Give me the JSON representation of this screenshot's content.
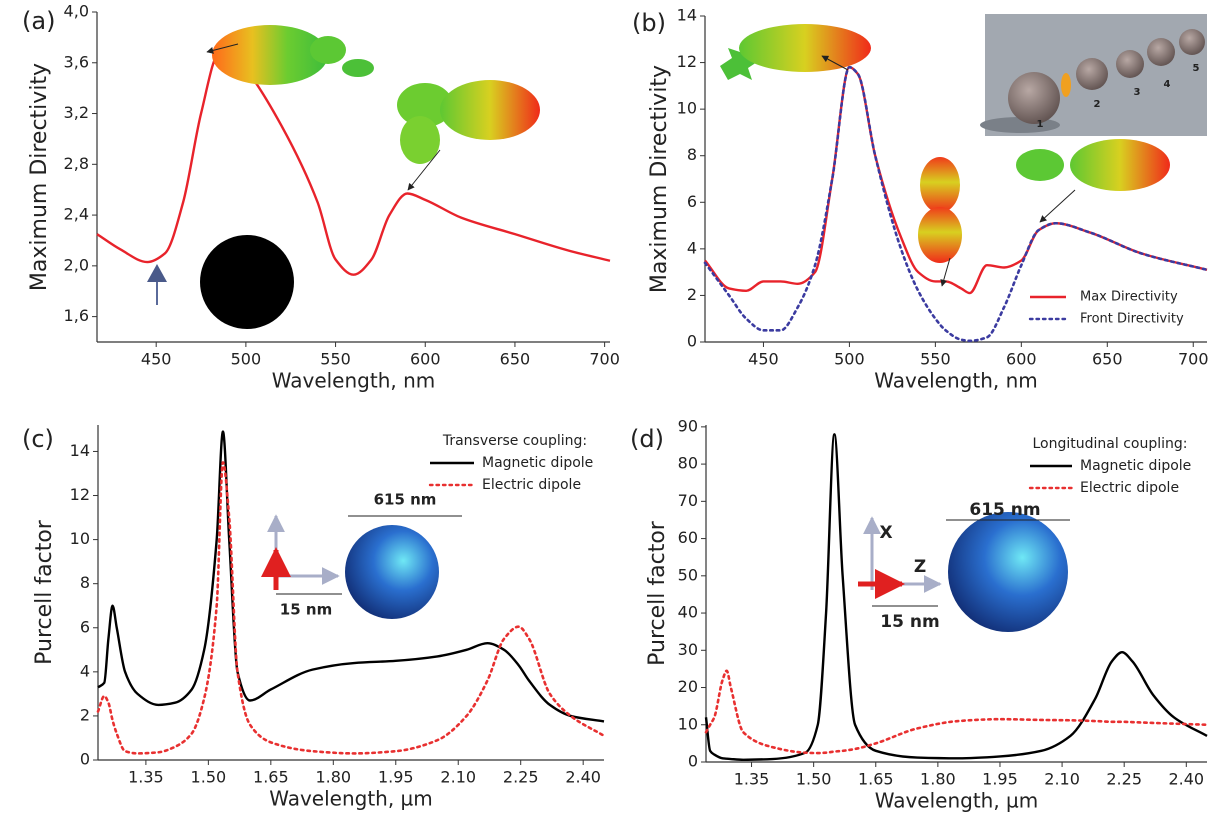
{
  "chart_data": [
    {
      "type": "line",
      "panel_label": "(a)",
      "xlabel": "Wavelength, nm",
      "ylabel": "Maximum Directivity",
      "xlim": [
        417,
        703
      ],
      "ylim": [
        1.4,
        4.0
      ],
      "xticks": [
        450,
        500,
        550,
        600,
        650,
        700
      ],
      "yticks": [
        {
          "value": 1.6,
          "label": "1,6"
        },
        {
          "value": 2.0,
          "label": "2,0"
        },
        {
          "value": 2.4,
          "label": "2,4"
        },
        {
          "value": 2.8,
          "label": "2,8"
        },
        {
          "value": 3.2,
          "label": "3,2"
        },
        {
          "value": 3.6,
          "label": "3,6"
        },
        {
          "value": 4.0,
          "label": "4,0"
        }
      ],
      "x": [
        417,
        430,
        445,
        455,
        465,
        475,
        485,
        490,
        500,
        520,
        540,
        550,
        560,
        570,
        580,
        590,
        600,
        620,
        650,
        680,
        703
      ],
      "values": [
        2.25,
        2.13,
        2.03,
        2.1,
        2.5,
        3.2,
        3.68,
        3.7,
        3.55,
        3.1,
        2.5,
        2.05,
        1.93,
        2.05,
        2.4,
        2.57,
        2.52,
        2.38,
        2.25,
        2.12,
        2.04
      ],
      "color": "#e8232b"
    },
    {
      "type": "line",
      "panel_label": "(b)",
      "xlabel": "Wavelength, nm",
      "ylabel": "Maximum Directivity",
      "xlim": [
        416,
        708
      ],
      "ylim": [
        0,
        14
      ],
      "xticks": [
        450,
        500,
        550,
        600,
        650,
        700
      ],
      "yticks": [
        0,
        2,
        4,
        6,
        8,
        10,
        12,
        14
      ],
      "x": [
        416,
        430,
        440,
        450,
        460,
        470,
        480,
        490,
        500,
        505,
        515,
        530,
        540,
        550,
        556,
        565,
        570,
        580,
        590,
        600,
        610,
        620,
        640,
        670,
        708
      ],
      "series": [
        {
          "name": "Max Directivity",
          "color": "#e8232b",
          "dash": "solid",
          "values": [
            3.5,
            2.3,
            2.2,
            2.6,
            2.6,
            2.5,
            3.0,
            7,
            11.8,
            11.5,
            8,
            4.5,
            3,
            2.6,
            2.6,
            2.3,
            2.1,
            3.3,
            3.2,
            3.5,
            4.8,
            5.1,
            4.7,
            3.8,
            3.1
          ]
        },
        {
          "name": "Front Directivity",
          "color": "#3b3ba0",
          "dash": "dotted",
          "values": [
            3.4,
            2,
            1,
            0.5,
            0.5,
            1.5,
            3.3,
            7,
            11.8,
            11.5,
            8,
            4,
            2.2,
            1,
            0.5,
            0.1,
            0.05,
            0.2,
            1.5,
            3.3,
            4.8,
            5.1,
            4.7,
            3.8,
            3.1
          ]
        }
      ],
      "annotations": [
        "1",
        "2",
        "3",
        "4",
        "5"
      ]
    },
    {
      "type": "line",
      "panel_label": "(c)",
      "xlabel": "Wavelength, µm",
      "ylabel": "Purcell factor",
      "xlim": [
        1.235,
        2.45
      ],
      "ylim": [
        0,
        15.2
      ],
      "xticks": [
        1.35,
        {
          "value": 1.5,
          "label": "1.50"
        },
        1.65,
        {
          "value": 1.8,
          "label": "1.80"
        },
        1.95,
        {
          "value": 2.1,
          "label": "2.10"
        },
        2.25,
        {
          "value": 2.4,
          "label": "2.40"
        }
      ],
      "yticks": [
        0,
        2,
        4,
        6,
        8,
        10,
        12,
        14
      ],
      "x": [
        1.235,
        1.25,
        1.26,
        1.27,
        1.28,
        1.3,
        1.33,
        1.38,
        1.42,
        1.46,
        1.49,
        1.52,
        1.535,
        1.55,
        1.57,
        1.6,
        1.65,
        1.75,
        1.85,
        1.95,
        2.05,
        2.12,
        2.17,
        2.21,
        2.245,
        2.27,
        2.32,
        2.37,
        2.45
      ],
      "legend_title": "Transverse coupling:",
      "series": [
        {
          "name": "Magnetic dipole",
          "color": "#000000",
          "dash": "solid",
          "values": [
            3.3,
            3.5,
            5.5,
            7,
            6,
            4,
            3,
            2.5,
            2.6,
            3.2,
            5,
            10,
            14.9,
            10,
            4,
            2.7,
            3.2,
            4.1,
            4.4,
            4.5,
            4.7,
            5.0,
            5.3,
            5.0,
            4.3,
            3.6,
            2.5,
            2,
            1.75
          ]
        },
        {
          "name": "Electric dipole",
          "color": "#e83030",
          "dash": "dotted",
          "values": [
            2.2,
            2.9,
            2.6,
            1.8,
            1.2,
            0.4,
            0.3,
            0.35,
            0.6,
            1.2,
            2.8,
            7,
            13.5,
            11,
            4,
            1.6,
            0.8,
            0.4,
            0.3,
            0.4,
            0.9,
            2,
            3.6,
            5.5,
            6.05,
            5.5,
            3,
            2,
            1.1
          ]
        }
      ],
      "annotations": [
        "615 nm",
        "15 nm"
      ]
    },
    {
      "type": "line",
      "panel_label": "(d)",
      "xlabel": "Wavelength, µm",
      "ylabel": "Purcell factor",
      "xlim": [
        1.24,
        2.45
      ],
      "ylim": [
        0,
        90.5
      ],
      "xticks": [
        1.35,
        {
          "value": 1.5,
          "label": "1.50"
        },
        1.65,
        {
          "value": 1.8,
          "label": "1.80"
        },
        1.95,
        {
          "value": 2.1,
          "label": "2.10"
        },
        2.25,
        {
          "value": 2.4,
          "label": "2.40"
        }
      ],
      "yticks": [
        0,
        10,
        20,
        30,
        40,
        50,
        60,
        70,
        80,
        90
      ],
      "x": [
        1.24,
        1.25,
        1.26,
        1.28,
        1.29,
        1.3,
        1.33,
        1.4,
        1.48,
        1.51,
        1.53,
        1.55,
        1.57,
        1.6,
        1.65,
        1.75,
        1.85,
        1.95,
        2.05,
        2.12,
        2.18,
        2.22,
        2.245,
        2.27,
        2.32,
        2.37,
        2.45
      ],
      "legend_title": "Longitudinal coupling:",
      "series": [
        {
          "name": "Magnetic dipole",
          "color": "#000000",
          "dash": "solid",
          "values": [
            12,
            3,
            2,
            1,
            0.9,
            0.8,
            0.6,
            0.8,
            2.5,
            10,
            40,
            88,
            50,
            10,
            3,
            1.2,
            1,
            1.5,
            3,
            7,
            17,
            27,
            29.5,
            27,
            18,
            12,
            7
          ]
        },
        {
          "name": "Electric dipole",
          "color": "#e83030",
          "dash": "dotted",
          "values": [
            8,
            10,
            12,
            22,
            24.5,
            20,
            8,
            4,
            2.5,
            2.4,
            2.5,
            2.8,
            3,
            3.5,
            5,
            9,
            11,
            11.5,
            11.3,
            11.2,
            11,
            10.8,
            10.8,
            10.7,
            10.5,
            10.3,
            10
          ]
        }
      ],
      "annotations": [
        "615 nm",
        "15 nm",
        "X",
        "Z"
      ]
    }
  ]
}
